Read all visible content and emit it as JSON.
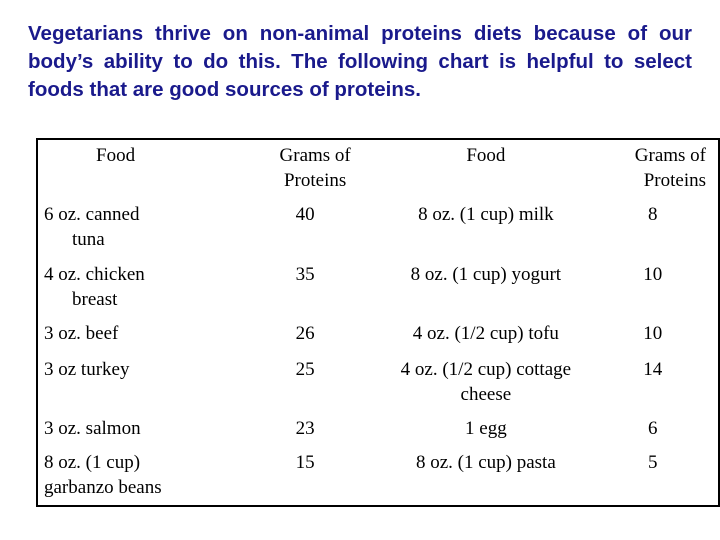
{
  "intro_text": "Vegetarians thrive on non-animal proteins diets because of our body’s ability to do this. The following chart is helpful to  select foods that are good sources of proteins.",
  "table": {
    "headers": {
      "food_left": "Food",
      "grams_left_line1": "Grams of",
      "grams_left_line2": "Proteins",
      "food_right": "Food",
      "grams_right_line1": "Grams of",
      "grams_right_line2": "Proteins"
    },
    "rows": [
      {
        "food_left_line1": "6 oz. canned",
        "food_left_line2": "tuna",
        "grams_left": "40",
        "food_right_line1": "8 oz. (1 cup) milk",
        "food_right_line2": "",
        "grams_right": "8"
      },
      {
        "food_left_line1": "4 oz. chicken",
        "food_left_line2": "breast",
        "grams_left": "35",
        "food_right_line1": "8 oz. (1 cup) yogurt",
        "food_right_line2": "",
        "grams_right": "10"
      },
      {
        "food_left_line1": "3 oz. beef",
        "food_left_line2": "",
        "grams_left": "26",
        "food_right_line1": "4 oz. (1/2 cup) tofu",
        "food_right_line2": "",
        "grams_right": "10"
      },
      {
        "food_left_line1": "3 oz turkey",
        "food_left_line2": "",
        "grams_left": "25",
        "food_right_line1": "4 oz. (1/2 cup) cottage",
        "food_right_line2": "cheese",
        "grams_right": "14"
      },
      {
        "food_left_line1": "3 oz. salmon",
        "food_left_line2": "",
        "grams_left": "23",
        "food_right_line1": "1 egg",
        "food_right_line2": "",
        "grams_right": "6"
      },
      {
        "food_left_line1": "8 oz. (1 cup)",
        "food_left_line2": "garbanzo beans",
        "grams_left": "15",
        "food_right_line1": "8 oz. (1 cup) pasta",
        "food_right_line2": "",
        "grams_right": "5"
      }
    ]
  }
}
